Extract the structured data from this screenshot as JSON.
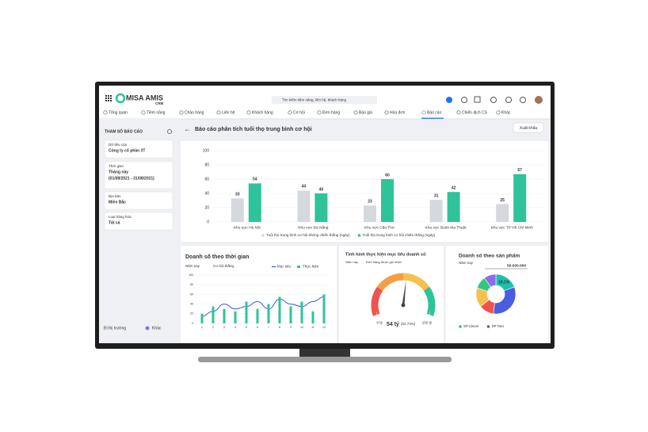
{
  "header": {
    "brand": "MISA AMIS",
    "product": "CRM",
    "search_placeholder": "Tìm kiếm tiềm năng, liên hệ, khách hàng"
  },
  "nav": [
    "Tổng quan",
    "Tiềm năng",
    "Chào hàng",
    "Liên hệ",
    "Khách hàng",
    "Cơ hội",
    "Đơn hàng",
    "Báo giá",
    "Hóa đơn",
    "Báo cáo",
    "Chiến dịch CS",
    "Khác"
  ],
  "sidebar": {
    "title": "THAM SỐ BÁO CÁO",
    "filters": [
      {
        "label": "Dữ liệu của",
        "value": "Công ty cổ phần 3T"
      },
      {
        "label": "Thời gian",
        "value": "Tháng này",
        "detail": "(01/08/2021 - 31/08/2021)"
      },
      {
        "label": "Địa bàn",
        "value": "Miền Bắc"
      },
      {
        "label": "Loại hàng hóa",
        "value": "Tất cả"
      }
    ],
    "footer": [
      "Đi thị trường",
      "Khác"
    ]
  },
  "report": {
    "title": "Báo cáo phân tích tuổi thọ trung bình cơ hội",
    "export": "Xuất khẩu"
  },
  "chart_data": [
    {
      "type": "bar",
      "categories": [
        "Khu vực Hà Nội",
        "Khu vực Đà Nẵng",
        "Khu vực Cần Thơ",
        "Khu vực Buôn Ma Thuột",
        "Khu vực TP Hồ Chí Minh"
      ],
      "series": [
        {
          "name": "Tuổi thọ trung bình cơ hội không chiến thắng (ngày)",
          "color": "#d5d8dd",
          "values": [
            33,
            44,
            23,
            31,
            25
          ]
        },
        {
          "name": "Tuổi thọ trung bình cơ hội chiến thắng (ngày)",
          "color": "#2fc39a",
          "values": [
            54,
            40,
            60,
            42,
            67
          ]
        }
      ],
      "ylim": [
        0,
        100
      ],
      "yticks": [
        0,
        20,
        40,
        60,
        80,
        100
      ],
      "grid": true
    },
    {
      "type": "combo",
      "title": "Doanh số theo thời gian",
      "filters": [
        "Năm nay",
        "Cơ hội thắng"
      ],
      "categories": [
        "1",
        "2",
        "3",
        "4",
        "5",
        "6",
        "7",
        "8",
        "9",
        "10",
        "11",
        "12"
      ],
      "series": [
        {
          "name": "Mục tiêu",
          "color": "#3b5bdb",
          "kind": "line",
          "values": [
            15,
            25,
            40,
            30,
            35,
            45,
            30,
            50,
            40,
            35,
            45,
            55
          ]
        },
        {
          "name": "Thực hiện",
          "color": "#2fc39a",
          "kind": "bar",
          "values": [
            20,
            35,
            30,
            25,
            45,
            30,
            40,
            55,
            35,
            45,
            25,
            60
          ]
        }
      ],
      "ylim": [
        0,
        100
      ],
      "yticks": [
        0,
        20,
        40,
        60,
        80,
        100
      ],
      "grid": true
    },
    {
      "type": "gauge",
      "title": "Tình hình thực hiện mục tiêu doanh số",
      "filters": [
        "Năm nay",
        "Đơn hàng được ghi nhận"
      ],
      "value": 54,
      "value_label": "54 tỷ",
      "percent_label": "(52,73%)",
      "ylim": [
        0,
        102
      ],
      "yticks": [
        {
          "value": 0,
          "label": "0 tỷ"
        },
        {
          "value": 102,
          "label": "102 tỷ"
        }
      ]
    },
    {
      "type": "donut",
      "title": "Doanh số theo sản phẩm",
      "filters": [
        "Năm nay"
      ],
      "total_label": "50.000.000",
      "categories": [
        "SP Alsom",
        "SP Toto",
        null,
        null,
        null,
        null
      ],
      "values": [
        19.1,
        33,
        12,
        16,
        10,
        9.9
      ],
      "value_labels": [
        "19,1%",
        null,
        null,
        null,
        null,
        null
      ],
      "colors": [
        "#1fbfae",
        "#4a5de0",
        "#ef5350",
        "#f6c04d",
        "#34c77b",
        "#8e6be8"
      ]
    }
  ]
}
